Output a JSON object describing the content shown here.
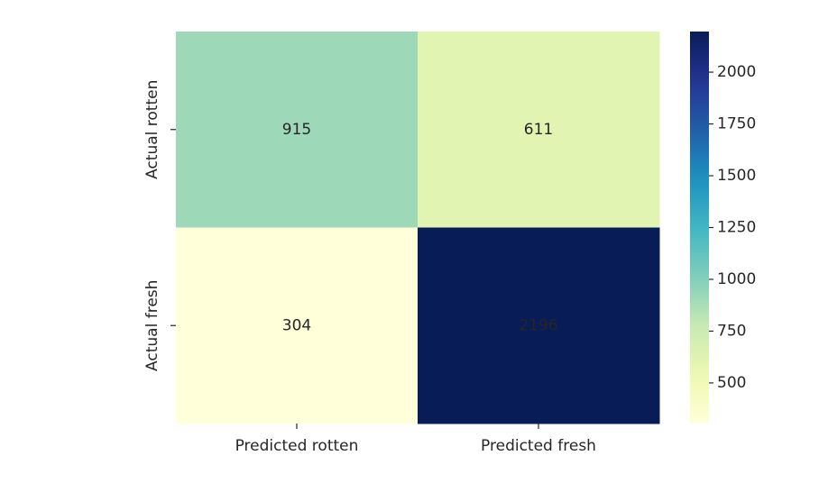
{
  "chart_data": {
    "type": "heatmap",
    "title": "",
    "xlabel": "",
    "ylabel": "",
    "x_categories": [
      "Predicted rotten",
      "Predicted fresh"
    ],
    "y_categories": [
      "Actual rotten",
      "Actual fresh"
    ],
    "values": [
      [
        915,
        611
      ],
      [
        304,
        2196
      ]
    ],
    "colormap": "YlGnBu",
    "colorbar": {
      "min": 304,
      "max": 2196,
      "ticks": [
        500,
        750,
        1000,
        1250,
        1500,
        1750,
        2000
      ]
    },
    "grid": false
  },
  "colors": {
    "low": "#ffffd9",
    "high": "#0e1f5b",
    "text_dark": "#262626",
    "text_light": "#ffffff"
  }
}
